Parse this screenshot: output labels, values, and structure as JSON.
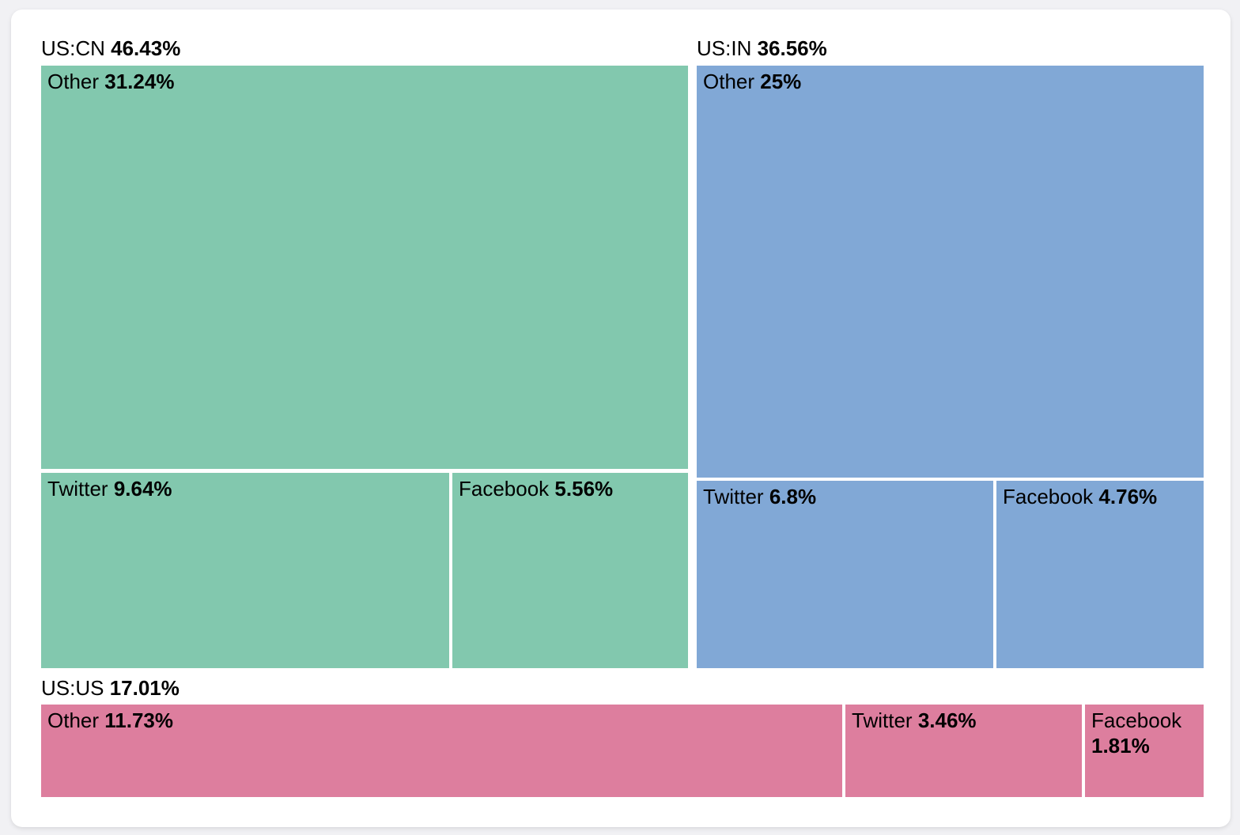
{
  "chart_data": {
    "type": "treemap",
    "title": "",
    "legend": "none",
    "unit": "%",
    "colors": {
      "us_cn": "#82C8AE",
      "us_in": "#81A8D6",
      "us_us": "#DD7E9E",
      "page_background": "#F1F1F4",
      "card_background": "#FFFFFF",
      "label_text": "#000000"
    },
    "groups": [
      {
        "name": "US:CN",
        "pct": 46.43,
        "pct_label": "46.43%",
        "color": "#82C8AE",
        "children": [
          {
            "name": "Other",
            "pct": 31.24,
            "pct_label": "31.24%"
          },
          {
            "name": "Twitter",
            "pct": 9.64,
            "pct_label": "9.64%"
          },
          {
            "name": "Facebook",
            "pct": 5.56,
            "pct_label": "5.56%"
          }
        ]
      },
      {
        "name": "US:IN",
        "pct": 36.56,
        "pct_label": "36.56%",
        "color": "#81A8D6",
        "children": [
          {
            "name": "Other",
            "pct": 25,
            "pct_label": "25%"
          },
          {
            "name": "Twitter",
            "pct": 6.8,
            "pct_label": "6.8%"
          },
          {
            "name": "Facebook",
            "pct": 4.76,
            "pct_label": "4.76%"
          }
        ]
      },
      {
        "name": "US:US",
        "pct": 17.01,
        "pct_label": "17.01%",
        "color": "#DD7E9E",
        "children": [
          {
            "name": "Other",
            "pct": 11.73,
            "pct_label": "11.73%"
          },
          {
            "name": "Twitter",
            "pct": 3.46,
            "pct_label": "3.46%"
          },
          {
            "name": "Facebook",
            "pct": 1.81,
            "pct_label": "1.81%"
          }
        ]
      }
    ]
  }
}
